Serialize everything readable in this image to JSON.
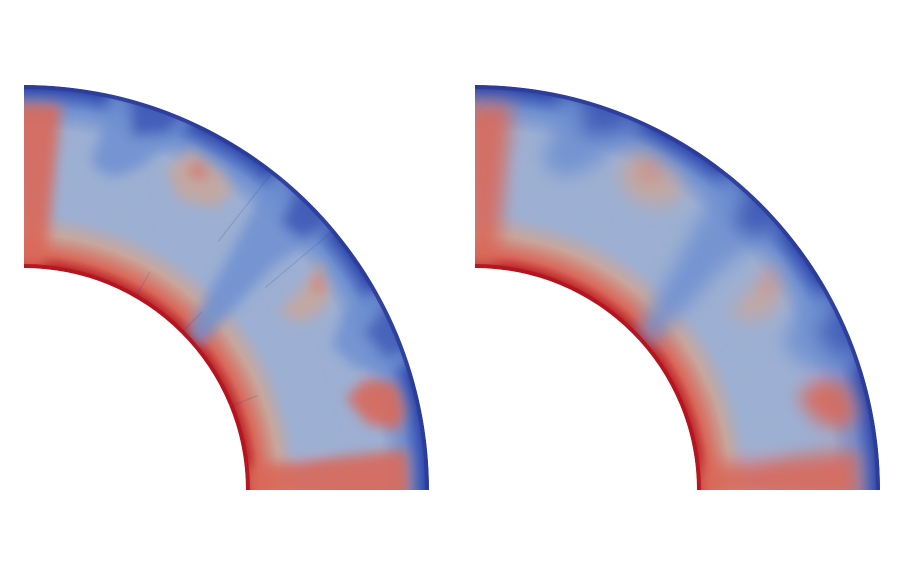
{
  "figure": {
    "panel_count": 2,
    "colormap": "cool-to-warm",
    "colors": {
      "hot": "#b4141e",
      "warm": "#d9685a",
      "mid": "#c8a79c",
      "neutral": "#9db0d3",
      "cool": "#6e8fd0",
      "cold": "#3a55b4",
      "coldest": "#2c3c9a"
    },
    "panels": [
      {
        "name": "left-panel",
        "variant": "coarse"
      },
      {
        "name": "right-panel",
        "variant": "smooth"
      }
    ]
  }
}
